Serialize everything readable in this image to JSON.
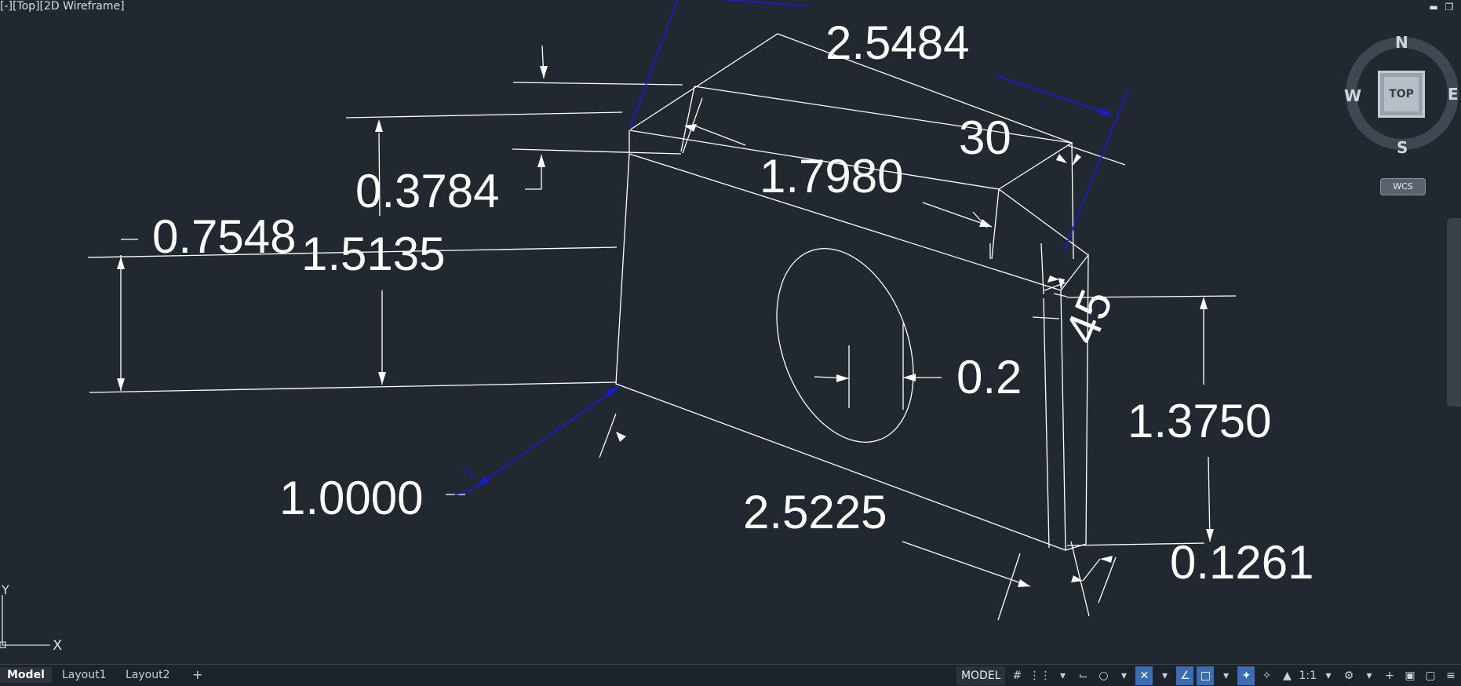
{
  "viewport": {
    "label": "[-][Top][2D Wireframe]"
  },
  "dimensions": {
    "d_2_5484": "2.5484",
    "d_30": "30",
    "d_1_7980": "1.7980",
    "d_0_3784": "0.3784",
    "d_0_7548": "0.7548",
    "d_1_5135": "1.5135",
    "d_45": "45",
    "d_0_2": "0.2",
    "d_1_3750": "1.3750",
    "d_1_0000": "1.0000",
    "d_2_5225": "2.5225",
    "d_0_1261": "0.1261"
  },
  "viewcube": {
    "north": "N",
    "south": "S",
    "east": "E",
    "west": "W",
    "face": "TOP",
    "wcs": "WCS"
  },
  "ucs": {
    "x": "X",
    "y": "Y"
  },
  "tabs": {
    "model": "Model",
    "layout1": "Layout1",
    "layout2": "Layout2",
    "add": "+"
  },
  "status": {
    "model": "MODEL",
    "scale": "1:1"
  },
  "colors": {
    "background": "#212830",
    "line": "#ffffff",
    "highlight": "#1a1ad8"
  }
}
